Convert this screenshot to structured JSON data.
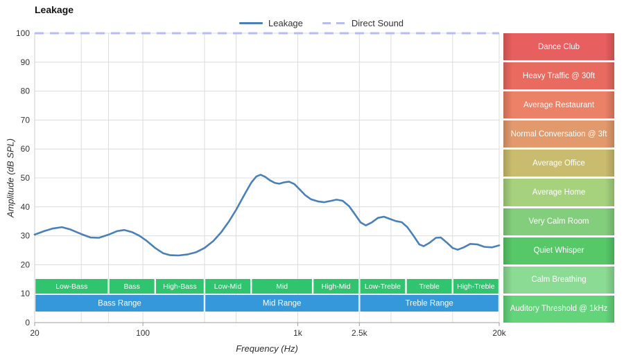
{
  "header": {
    "title": "Leakage"
  },
  "legend": {
    "items": [
      {
        "label": "Leakage",
        "color": "#4a80ba",
        "style": "solid"
      },
      {
        "label": "Direct Sound",
        "color": "#b7bdf4",
        "style": "dashed"
      }
    ]
  },
  "chart_data": {
    "type": "line",
    "title": "Leakage",
    "xlabel": "Frequency (Hz)",
    "ylabel": "Amplitude (dB SPL)",
    "x_scale": "log",
    "xlim": [
      20,
      20000
    ],
    "ylim": [
      0,
      100
    ],
    "grid": true,
    "legend_position": "top",
    "y_ticks": [
      0,
      10,
      20,
      30,
      40,
      50,
      60,
      70,
      80,
      90,
      100
    ],
    "x_gridlines": [
      40,
      60,
      100,
      250,
      400,
      1000,
      2500,
      4000,
      10000,
      20000
    ],
    "x_tick_labels": [
      {
        "f": 20,
        "label": "20"
      },
      {
        "f": 100,
        "label": "100"
      },
      {
        "f": 1000,
        "label": "1k"
      },
      {
        "f": 2500,
        "label": "2.5k"
      },
      {
        "f": 20000,
        "label": "20k"
      }
    ],
    "series": [
      {
        "name": "Leakage",
        "color": "#4a80ba",
        "style": "solid",
        "points": [
          [
            20,
            30.4
          ],
          [
            23,
            31.6
          ],
          [
            26,
            32.5
          ],
          [
            30,
            33.0
          ],
          [
            34,
            32.2
          ],
          [
            40,
            30.6
          ],
          [
            46,
            29.4
          ],
          [
            52,
            29.3
          ],
          [
            60,
            30.4
          ],
          [
            68,
            31.6
          ],
          [
            76,
            32.0
          ],
          [
            85,
            31.3
          ],
          [
            95,
            30.0
          ],
          [
            105,
            28.4
          ],
          [
            120,
            25.8
          ],
          [
            135,
            24.0
          ],
          [
            150,
            23.3
          ],
          [
            170,
            23.2
          ],
          [
            195,
            23.6
          ],
          [
            220,
            24.3
          ],
          [
            250,
            25.8
          ],
          [
            285,
            28.2
          ],
          [
            320,
            31.2
          ],
          [
            360,
            35.0
          ],
          [
            400,
            39.0
          ],
          [
            450,
            44.0
          ],
          [
            500,
            48.3
          ],
          [
            540,
            50.5
          ],
          [
            575,
            51.1
          ],
          [
            615,
            50.4
          ],
          [
            660,
            49.2
          ],
          [
            710,
            48.3
          ],
          [
            760,
            48.0
          ],
          [
            820,
            48.5
          ],
          [
            880,
            48.7
          ],
          [
            950,
            47.9
          ],
          [
            1030,
            46.0
          ],
          [
            1120,
            44.0
          ],
          [
            1220,
            42.6
          ],
          [
            1350,
            41.9
          ],
          [
            1480,
            41.6
          ],
          [
            1620,
            42.0
          ],
          [
            1780,
            42.5
          ],
          [
            1950,
            42.1
          ],
          [
            2150,
            40.2
          ],
          [
            2350,
            37.3
          ],
          [
            2550,
            34.6
          ],
          [
            2750,
            33.6
          ],
          [
            3000,
            34.6
          ],
          [
            3300,
            36.2
          ],
          [
            3600,
            36.6
          ],
          [
            3900,
            35.9
          ],
          [
            4300,
            35.1
          ],
          [
            4700,
            34.7
          ],
          [
            5100,
            33.0
          ],
          [
            5600,
            30.0
          ],
          [
            6100,
            27.0
          ],
          [
            6500,
            26.4
          ],
          [
            7100,
            27.6
          ],
          [
            7800,
            29.3
          ],
          [
            8400,
            29.4
          ],
          [
            9200,
            27.6
          ],
          [
            10000,
            25.8
          ],
          [
            10800,
            25.2
          ],
          [
            11800,
            26.0
          ],
          [
            13000,
            27.2
          ],
          [
            14500,
            27.0
          ],
          [
            16000,
            26.2
          ],
          [
            18000,
            26.0
          ],
          [
            20000,
            26.7
          ]
        ]
      },
      {
        "name": "Direct Sound",
        "color": "#b7bdf4",
        "style": "dashed",
        "points": [
          [
            20,
            100
          ],
          [
            20000,
            100
          ]
        ]
      }
    ],
    "frequency_bands": {
      "sub_color": "#2fc46d",
      "main_color": "#3498db",
      "sub": [
        {
          "label": "Low-Bass",
          "from": 20,
          "to": 60
        },
        {
          "label": "Bass",
          "from": 60,
          "to": 120
        },
        {
          "label": "High-Bass",
          "from": 120,
          "to": 250
        },
        {
          "label": "Low-Mid",
          "from": 250,
          "to": 500
        },
        {
          "label": "Mid",
          "from": 500,
          "to": 1250
        },
        {
          "label": "High-Mid",
          "from": 1250,
          "to": 2500
        },
        {
          "label": "Low-Treble",
          "from": 2500,
          "to": 5000
        },
        {
          "label": "Treble",
          "from": 5000,
          "to": 10000
        },
        {
          "label": "High-Treble",
          "from": 10000,
          "to": 20000
        }
      ],
      "main": [
        {
          "label": "Bass Range",
          "from": 20,
          "to": 250
        },
        {
          "label": "Mid Range",
          "from": 250,
          "to": 2500
        },
        {
          "label": "Treble Range",
          "from": 2500,
          "to": 20000
        }
      ]
    },
    "noise_reference_bands": [
      {
        "label": "Dance Club",
        "color": "#e75f5e",
        "db_range": [
          90,
          100
        ]
      },
      {
        "label": "Heavy Traffic @ 30ft",
        "color": "#e96a5f",
        "db_range": [
          80,
          90
        ]
      },
      {
        "label": "Average Restaurant",
        "color": "#eb8166",
        "db_range": [
          70,
          80
        ]
      },
      {
        "label": "Normal Conversation @ 3ft",
        "color": "#e29a6c",
        "db_range": [
          60,
          70
        ]
      },
      {
        "label": "Average Office",
        "color": "#c9bc6e",
        "db_range": [
          50,
          60
        ]
      },
      {
        "label": "Average Home",
        "color": "#a6d17d",
        "db_range": [
          40,
          50
        ]
      },
      {
        "label": "Very Calm Room",
        "color": "#83ce7d",
        "db_range": [
          30,
          40
        ]
      },
      {
        "label": "Quiet Whisper",
        "color": "#56c868",
        "db_range": [
          20,
          30
        ]
      },
      {
        "label": "Calm Breathing",
        "color": "#8bdb94",
        "db_range": [
          10,
          20
        ]
      },
      {
        "label": "Auditory Threshold @ 1kHz",
        "color": "#63d47a",
        "db_range": [
          0,
          10
        ]
      }
    ]
  }
}
